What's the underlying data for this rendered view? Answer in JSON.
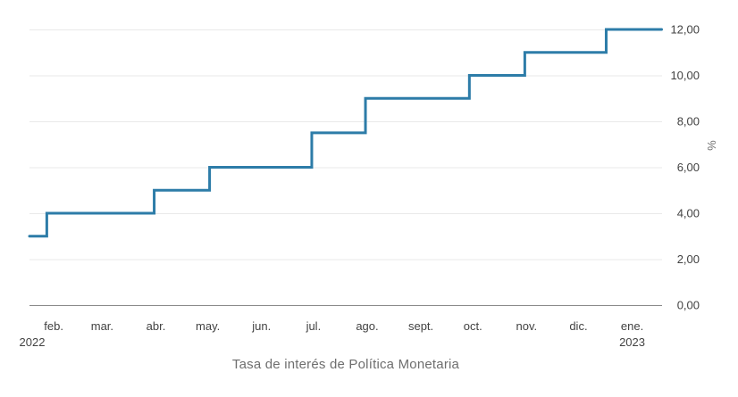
{
  "chart_data": {
    "type": "line",
    "step": true,
    "title": "Tasa de interés de Política Monetaria",
    "xlabel": "",
    "ylabel": "%",
    "ylim": [
      0,
      12
    ],
    "grid": true,
    "legend": false,
    "x_domain": [
      "2022-01-18",
      "2023-01-18"
    ],
    "y_axis": {
      "min": 0,
      "max": 12,
      "tick_step": 2,
      "tick_labels": [
        "0,00",
        "2,00",
        "4,00",
        "6,00",
        "8,00",
        "10,00",
        "12,00"
      ],
      "unit_label": "%"
    },
    "x_axis": {
      "ticks": [
        {
          "date": "2022-02-01",
          "label": "feb.",
          "sublabel": "2022"
        },
        {
          "date": "2022-03-01",
          "label": "mar."
        },
        {
          "date": "2022-04-01",
          "label": "abr."
        },
        {
          "date": "2022-05-01",
          "label": "may."
        },
        {
          "date": "2022-06-01",
          "label": "jun."
        },
        {
          "date": "2022-07-01",
          "label": "jul."
        },
        {
          "date": "2022-08-01",
          "label": "ago."
        },
        {
          "date": "2022-09-01",
          "label": "sept."
        },
        {
          "date": "2022-10-01",
          "label": "oct."
        },
        {
          "date": "2022-11-01",
          "label": "nov."
        },
        {
          "date": "2022-12-01",
          "label": "dic."
        },
        {
          "date": "2023-01-01",
          "label": "ene.",
          "sublabel": "2023"
        }
      ]
    },
    "series": [
      {
        "name": "Tasa de interés de Política Monetaria",
        "color": "#2d7ca8",
        "interpolation": "step-after",
        "end_date": "2023-01-18",
        "points": [
          {
            "date": "2022-01-18",
            "value": 3.0
          },
          {
            "date": "2022-01-28",
            "value": 4.0
          },
          {
            "date": "2022-03-31",
            "value": 5.0
          },
          {
            "date": "2022-05-02",
            "value": 6.0
          },
          {
            "date": "2022-06-30",
            "value": 7.5
          },
          {
            "date": "2022-07-31",
            "value": 9.0
          },
          {
            "date": "2022-09-29",
            "value": 10.0
          },
          {
            "date": "2022-10-31",
            "value": 11.0
          },
          {
            "date": "2022-12-17",
            "value": 12.0
          }
        ]
      }
    ]
  },
  "colors": {
    "line": "#2d7ca8",
    "grid": "#e9e9e9",
    "axis": "#8a8a8a",
    "tick_text": "#424242",
    "unit_text": "#6e6e6e",
    "title_text": "#6e6e6e"
  }
}
